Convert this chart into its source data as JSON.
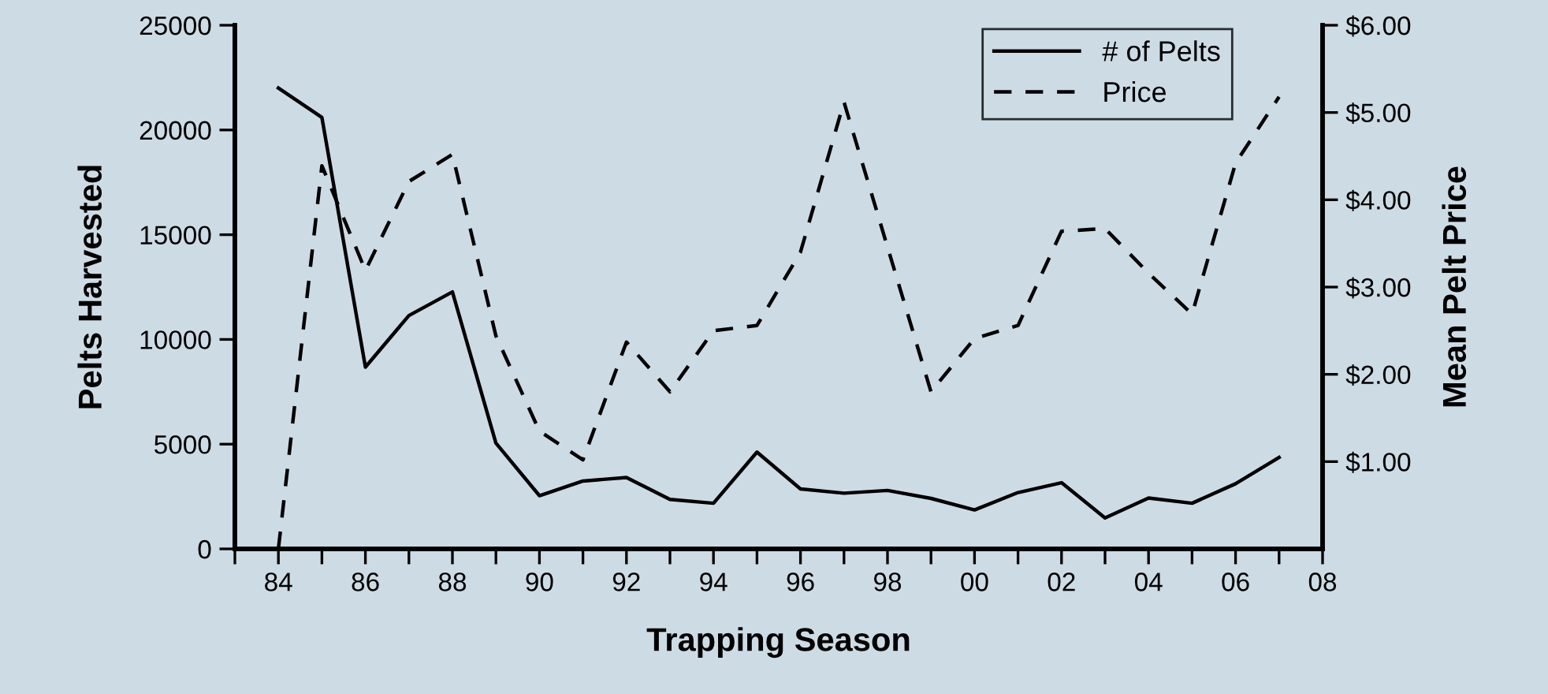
{
  "chart_data": {
    "type": "line",
    "xlabel": "Trapping Season",
    "ylabel": "Pelts Harvested",
    "y2label": "Mean Pelt Price",
    "x": [
      1984,
      1985,
      1986,
      1987,
      1988,
      1989,
      1990,
      1991,
      1992,
      1993,
      1994,
      1995,
      1996,
      1997,
      1998,
      1999,
      2000,
      2001,
      2002,
      2003,
      2004,
      2005,
      2006,
      2007
    ],
    "series": [
      {
        "name": "# of Pelts",
        "color": "#000000",
        "line_style": "solid",
        "values": [
          22000,
          20600,
          8680,
          11140,
          12270,
          5050,
          2540,
          3240,
          3410,
          2360,
          2180,
          4620,
          2860,
          2660,
          2790,
          2410,
          1860,
          2690,
          3160,
          1480,
          2430,
          2180,
          3110,
          4370
        ]
      },
      {
        "name": "Price",
        "color": "#000000",
        "line_style": "dashed",
        "axis": "y2",
        "values": [
          0,
          4.39,
          3.19,
          4.21,
          4.52,
          2.44,
          1.35,
          1.02,
          2.37,
          1.8,
          2.5,
          2.56,
          3.4,
          5.12,
          3.46,
          1.8,
          2.41,
          2.56,
          3.64,
          3.67,
          3.16,
          2.69,
          4.42,
          5.18
        ]
      }
    ],
    "xlim": [
      1983,
      2008
    ],
    "xticks": [
      {
        "value": 1983,
        "label": null
      },
      {
        "value": 1984,
        "label": "84"
      },
      {
        "value": 1985,
        "label": null
      },
      {
        "value": 1986,
        "label": "86"
      },
      {
        "value": 1987,
        "label": null
      },
      {
        "value": 1988,
        "label": "88"
      },
      {
        "value": 1989,
        "label": null
      },
      {
        "value": 1990,
        "label": "90"
      },
      {
        "value": 1991,
        "label": null
      },
      {
        "value": 1992,
        "label": "92"
      },
      {
        "value": 1993,
        "label": null
      },
      {
        "value": 1994,
        "label": "94"
      },
      {
        "value": 1995,
        "label": null
      },
      {
        "value": 1996,
        "label": "96"
      },
      {
        "value": 1997,
        "label": null
      },
      {
        "value": 1998,
        "label": "98"
      },
      {
        "value": 1999,
        "label": null
      },
      {
        "value": 2000,
        "label": "00"
      },
      {
        "value": 2001,
        "label": null
      },
      {
        "value": 2002,
        "label": "02"
      },
      {
        "value": 2003,
        "label": null
      },
      {
        "value": 2004,
        "label": "04"
      },
      {
        "value": 2005,
        "label": null
      },
      {
        "value": 2006,
        "label": "06"
      },
      {
        "value": 2007,
        "label": null
      },
      {
        "value": 2008,
        "label": "08"
      }
    ],
    "ylim": [
      0,
      25000
    ],
    "yticks": [
      0,
      5000,
      10000,
      15000,
      20000,
      25000
    ],
    "y2lim": [
      0,
      6
    ],
    "y2ticks": [
      {
        "value": 1,
        "label": "$1.00"
      },
      {
        "value": 2,
        "label": "$2.00"
      },
      {
        "value": 3,
        "label": "$3.00"
      },
      {
        "value": 4,
        "label": "$4.00"
      },
      {
        "value": 5,
        "label": "$5.00"
      },
      {
        "value": 6,
        "label": "$6.00"
      }
    ],
    "grid": false,
    "legend": "top right",
    "marker": "none"
  }
}
